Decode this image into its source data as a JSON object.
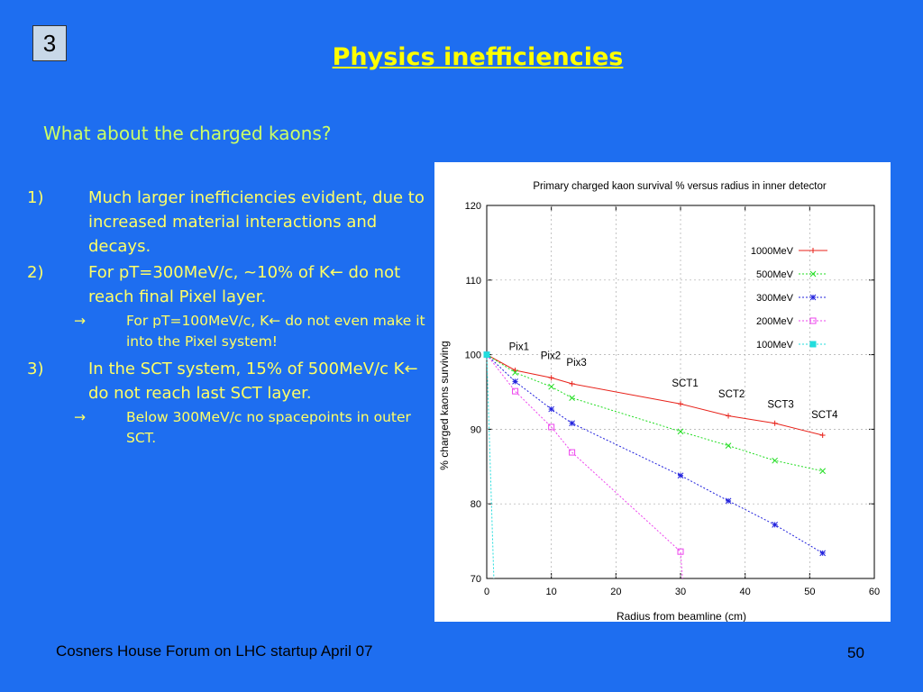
{
  "slide_number": "3",
  "title": "Physics inefficiencies",
  "subtitle": "What about the charged kaons?",
  "bullets": [
    {
      "num": "1)",
      "text": "Much larger inefficiencies evident, due to increased material interactions and decays."
    },
    {
      "num": "2)",
      "text": "For pT=300MeV/c, ~10% of K← do not reach final Pixel layer."
    },
    {
      "sub": true,
      "arrow": "→",
      "text": "For pT=100MeV/c, K← do not even make it into the Pixel system!"
    },
    {
      "num": "3)",
      "text": "In the SCT system, 15% of 500MeV/c K← do not reach last SCT layer."
    },
    {
      "sub": true,
      "arrow": "→",
      "text": "Below 300MeV/c no spacepoints in outer SCT."
    }
  ],
  "footer": {
    "left": "Cosners House Forum on LHC startup April 07",
    "page": "50"
  },
  "chart_data": {
    "type": "line",
    "title": "Primary charged kaon survival % versus radius in inner detector",
    "xlabel": "Radius from beamline (cm)",
    "ylabel": "% charged kaons surviving",
    "xlim": [
      0,
      60
    ],
    "ylim": [
      70,
      120
    ],
    "xticks": [
      0,
      10,
      20,
      30,
      40,
      50,
      60
    ],
    "yticks": [
      70,
      80,
      90,
      100,
      110,
      120
    ],
    "legend_position": "top-right",
    "series": [
      {
        "name": "1000MeV",
        "color": "#e8221a",
        "marker": "+",
        "x": [
          0,
          4.4,
          10,
          13.2,
          30,
          37.4,
          44.6,
          52
        ],
        "y": [
          100,
          97.9,
          96.9,
          96.1,
          93.4,
          91.8,
          90.8,
          89.2
        ]
      },
      {
        "name": "500MeV",
        "color": "#22dd22",
        "marker": "x",
        "x": [
          0,
          4.4,
          10,
          13.2,
          30,
          37.4,
          44.6,
          52
        ],
        "y": [
          100,
          97.6,
          95.7,
          94.2,
          89.7,
          87.8,
          85.8,
          84.4
        ]
      },
      {
        "name": "300MeV",
        "color": "#2222dd",
        "marker": "*",
        "x": [
          0,
          4.4,
          10,
          13.2,
          30,
          37.4,
          44.6,
          52
        ],
        "y": [
          100,
          96.4,
          92.7,
          90.8,
          83.8,
          80.4,
          77.2,
          73.4
        ]
      },
      {
        "name": "200MeV",
        "color": "#ee44ee",
        "marker": "square",
        "x": [
          0,
          4.4,
          10,
          13.2,
          30,
          30.3
        ],
        "y": [
          100,
          95.1,
          90.3,
          86.9,
          73.6,
          70
        ]
      },
      {
        "name": "100MeV",
        "color": "#22dddd",
        "marker": "filled-square",
        "x": [
          0,
          1.1
        ],
        "y": [
          100,
          70
        ]
      }
    ],
    "annotations": [
      {
        "text": "Pix1",
        "x": 5.0,
        "y": 100.6
      },
      {
        "text": "Pix2",
        "x": 9.9,
        "y": 99.4
      },
      {
        "text": "Pix3",
        "x": 13.9,
        "y": 98.5
      },
      {
        "text": "SCT1",
        "x": 30.7,
        "y": 95.7
      },
      {
        "text": "SCT2",
        "x": 37.9,
        "y": 94.3
      },
      {
        "text": "SCT3",
        "x": 45.5,
        "y": 92.9
      },
      {
        "text": "SCT4",
        "x": 52.3,
        "y": 91.5
      }
    ]
  }
}
